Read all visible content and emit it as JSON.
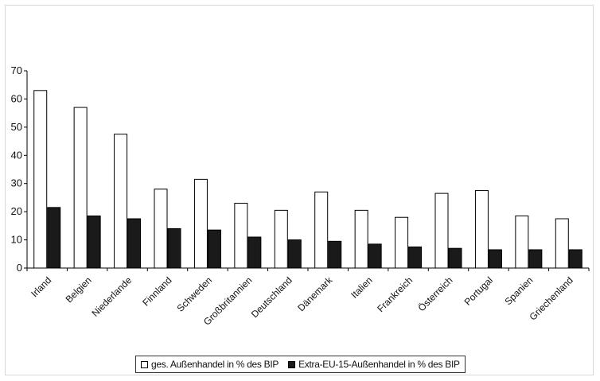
{
  "chart_data": {
    "type": "bar",
    "categories": [
      "Irland",
      "Belgien",
      "Niederlande",
      "Finnland",
      "Schweden",
      "Großbritannien",
      "Deutschland",
      "Dänemark",
      "Italien",
      "Frankreich",
      "Österreich",
      "Portugal",
      "Spanien",
      "Griechenland"
    ],
    "series": [
      {
        "name": "ges. Außenhandel in % des BIP",
        "color": "#ffffff",
        "values": [
          63,
          57,
          47.5,
          28,
          31.5,
          23,
          20.5,
          27,
          20.5,
          18,
          26.5,
          27.5,
          18.5,
          17.5
        ]
      },
      {
        "name": "Extra-EU-15-Außenhandel in % des BIP",
        "color": "#1a1a1a",
        "values": [
          21.5,
          18.5,
          17.5,
          14,
          13.5,
          11,
          10,
          9.5,
          8.5,
          7.5,
          7,
          6.5,
          6.5,
          6.5
        ]
      }
    ],
    "ylim": [
      0,
      70
    ],
    "yticks": [
      0,
      10,
      20,
      30,
      40,
      50,
      60,
      70
    ],
    "legend_position": "bottom",
    "grid": false
  }
}
